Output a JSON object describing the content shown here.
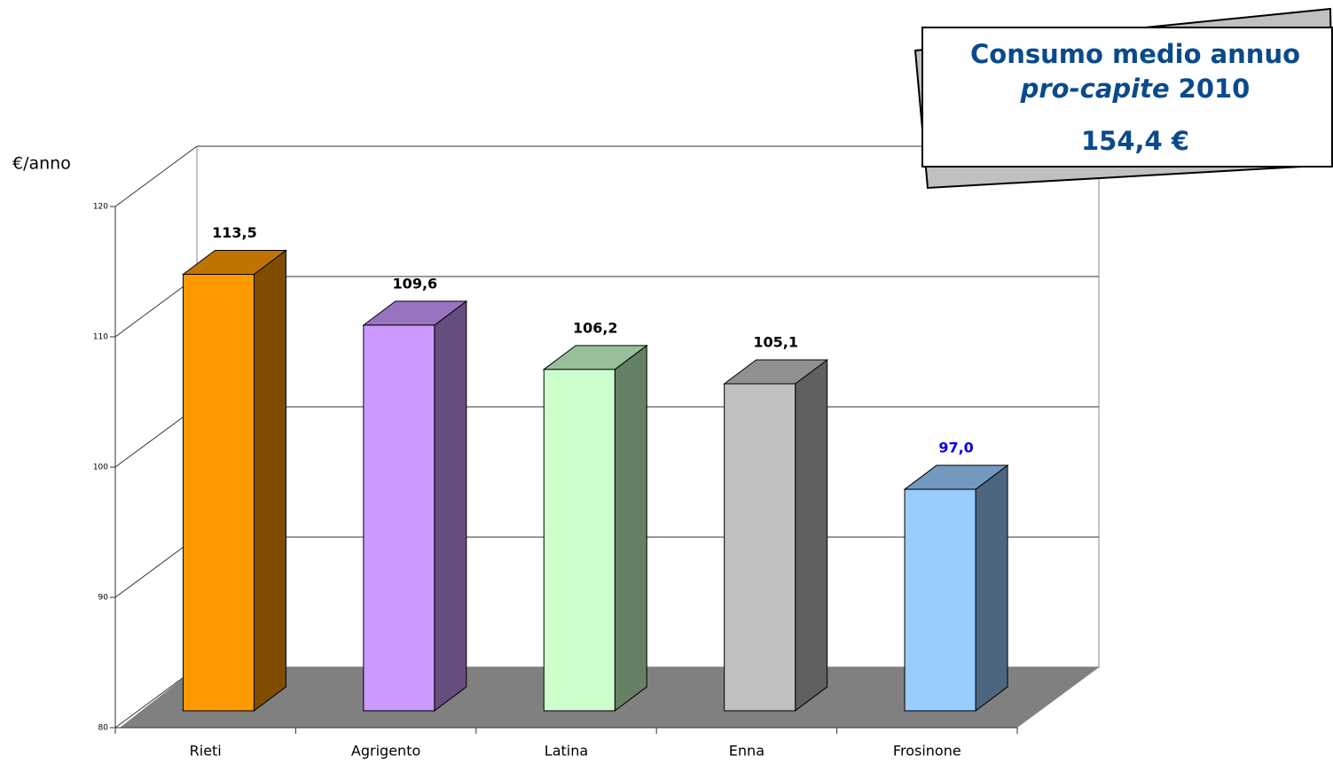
{
  "chart_data": {
    "type": "bar3d",
    "y_axis_label": "€/anno",
    "categories": [
      "Rieti",
      "Agrigento",
      "Latina",
      "Enna",
      "Frosinone"
    ],
    "values": [
      113.5,
      109.6,
      106.2,
      105.1,
      97.0
    ],
    "value_labels": [
      "113,5",
      "109,6",
      "106,2",
      "105,1",
      "97,0"
    ],
    "colors": [
      "#ff9900",
      "#cc99ff",
      "#ccffcc",
      "#c0c0c0",
      "#99ccff"
    ],
    "value_label_colors": [
      "#000000",
      "#000000",
      "#000000",
      "#000000",
      "#0000ee"
    ],
    "ylim": [
      80,
      120
    ],
    "yticks": [
      80,
      90,
      100,
      110,
      120
    ],
    "grid": true,
    "annotation": {
      "line1": "Consumo medio annuo",
      "line2_italic": "pro-capite",
      "line2": "2010",
      "line3": "154,4 €"
    }
  }
}
